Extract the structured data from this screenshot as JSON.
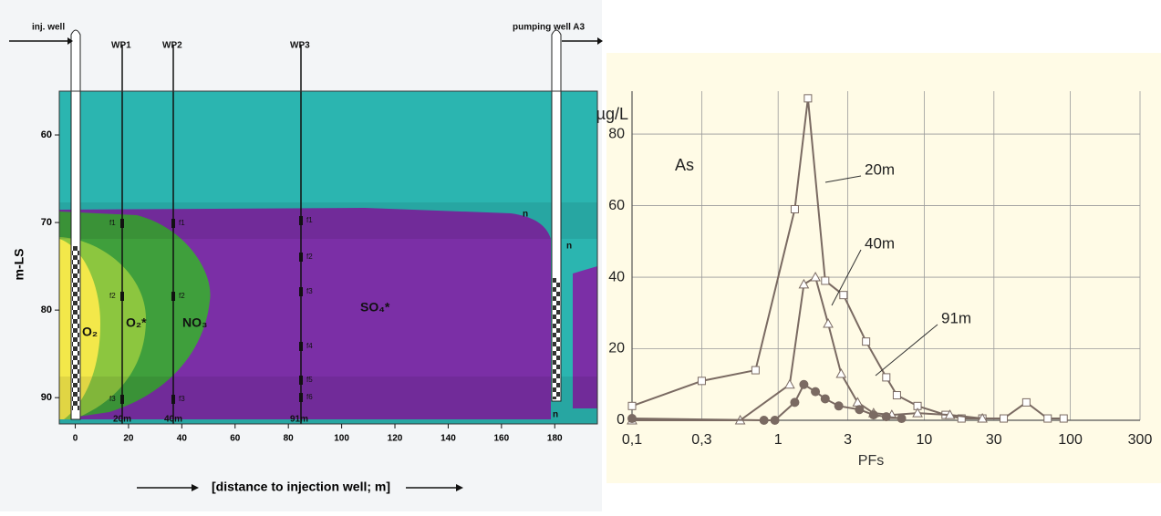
{
  "cross_section": {
    "y_label": "m-LS",
    "x_label": "[distance to injection well; m]",
    "xlim": [
      -6,
      196
    ],
    "ylim": [
      55,
      93
    ],
    "xticks": [
      0,
      20,
      40,
      60,
      80,
      100,
      120,
      140,
      160,
      180
    ],
    "yticks": [
      60,
      70,
      80,
      90
    ],
    "wells": [
      "inj. well",
      "WP1",
      "WP2",
      "WP3",
      "pumping well A3"
    ],
    "zones": [
      "O₂",
      "O₂*",
      "NO₃",
      "SO₄*"
    ],
    "zone_marker": "n",
    "filters": [
      "f1",
      "f2",
      "f3",
      "f4",
      "f5",
      "f6"
    ],
    "distances": [
      "20m",
      "40m",
      "91m"
    ]
  },
  "chart_data": {
    "type": "line",
    "y_label": "µg/L",
    "x_label": "PFs",
    "annotation": "As",
    "log_x": true,
    "grid": true,
    "background": "#fffbe6",
    "xlim": [
      0.1,
      300
    ],
    "ylim": [
      0,
      92
    ],
    "xticks": [
      {
        "value": 0.1,
        "label": "0,1"
      },
      {
        "value": 0.3,
        "label": "0,3"
      },
      1,
      3,
      10,
      30,
      100,
      300
    ],
    "yticks": [
      0,
      20,
      40,
      60,
      80
    ],
    "series": [
      {
        "name": "20m",
        "color": "#7a6a62",
        "marker": "square",
        "x": [
          0.1,
          0.3,
          0.7,
          1.3,
          1.6,
          2.1,
          2.8,
          4,
          5.5,
          6.5,
          9,
          14,
          18,
          25,
          35,
          50,
          70,
          90
        ],
        "values": [
          4,
          11,
          14,
          59,
          90,
          39,
          35,
          22,
          12,
          7,
          4,
          1.5,
          0.5,
          0.5,
          0.5,
          5,
          0.5,
          0.5
        ]
      },
      {
        "name": "40m",
        "color": "#7a6a62",
        "marker": "triangle",
        "x": [
          0.1,
          0.55,
          1.2,
          1.5,
          1.8,
          2.2,
          2.7,
          3.5,
          4.5,
          6,
          9,
          15,
          25
        ],
        "values": [
          0,
          0,
          10,
          38,
          40,
          27,
          13,
          5,
          2,
          1.5,
          2,
          1.5,
          0.5
        ]
      },
      {
        "name": "91m",
        "color": "#7a6a62",
        "marker": "circle",
        "x": [
          0.1,
          0.8,
          0.95,
          1.3,
          1.5,
          1.8,
          2.1,
          2.6,
          3.6,
          4.5,
          5.5,
          7
        ],
        "values": [
          0.5,
          0,
          0,
          5,
          10,
          8,
          6,
          4,
          3,
          1.5,
          1,
          0.5
        ]
      }
    ]
  }
}
